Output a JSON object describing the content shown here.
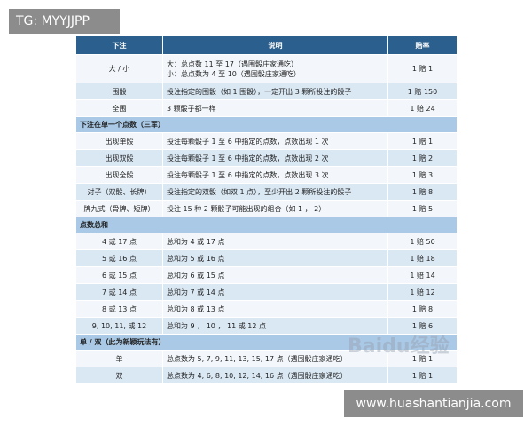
{
  "tag": "TG: MYYJJPP",
  "footer_url": "www.huashantianjia.com",
  "watermark": "Baidu经验",
  "table": {
    "header": [
      "下注",
      "说明",
      "赔率"
    ],
    "rows": [
      {
        "cells": [
          "大 / 小",
          [
            "大：总点数 11 至 17（遇围骰庄家通吃）",
            "小：总点数为 4 至 10（遇围骰庄家通吃）"
          ],
          "1 赔 1"
        ]
      },
      {
        "cells": [
          "围骰",
          "投注指定的围骰（如 1 围骰），一定开出 3 颗所投注的骰子",
          "1 赔 150"
        ]
      },
      {
        "cells": [
          "全围",
          "3 颗骰子都一样",
          "1 赔 24"
        ]
      },
      {
        "section": "下注在单一个点数（三军）"
      },
      {
        "cells": [
          "出现单骰",
          "投注每颗骰子 1 至 6 中指定的点数，点数出现 1 次",
          "1 赔 1"
        ]
      },
      {
        "cells": [
          "出现双骰",
          "投注每颗骰子 1 至 6 中指定的点数，点数出现 2 次",
          "1 赔 2"
        ]
      },
      {
        "cells": [
          "出现全骰",
          "投注每颗骰子 1 至 6 中指定的点数，点数出现 3 次",
          "1 赔 3"
        ]
      },
      {
        "cells": [
          "对子（双骰、长牌）",
          "投注指定的双骰（如双 1 点），至少开出 2 颗所投注的骰子",
          "1 赔 8"
        ]
      },
      {
        "cells": [
          "牌九式（骨牌、短牌）",
          "投注 15 种 2 颗骰子可能出现的组合（如 1 ， 2）",
          "1 赔 5"
        ]
      },
      {
        "section": "点数总和"
      },
      {
        "cells": [
          "4 或 17 点",
          "总和为 4 或 17 点",
          "1 赔 50"
        ]
      },
      {
        "cells": [
          "5 或 16 点",
          "总和为 5 或 16 点",
          "1 赔 18"
        ]
      },
      {
        "cells": [
          "6 或 15 点",
          "总和为 6 或 15 点",
          "1 赔 14"
        ]
      },
      {
        "cells": [
          "7 或 14 点",
          "总和为 7 或 14 点",
          "1 赔 12"
        ]
      },
      {
        "cells": [
          "8 或 13 点",
          "总和为 8 或 13 点",
          "1 赔 8"
        ]
      },
      {
        "cells": [
          "9, 10, 11, 或 12",
          "总和为 9 ， 10 ， 11 或 12 点",
          "1 赔 6"
        ]
      },
      {
        "section": "单 / 双（此为新颖玩法有）"
      },
      {
        "cells": [
          "单",
          "总点数为 5, 7, 9, 11, 13, 15, 17 点（遇围骰庄家通吃）",
          "1 赔 1"
        ]
      },
      {
        "cells": [
          "双",
          "总点数为 4, 6, 8, 10, 12, 14, 16 点（遇围骰庄家通吃）",
          "1 赔 1"
        ]
      }
    ]
  }
}
